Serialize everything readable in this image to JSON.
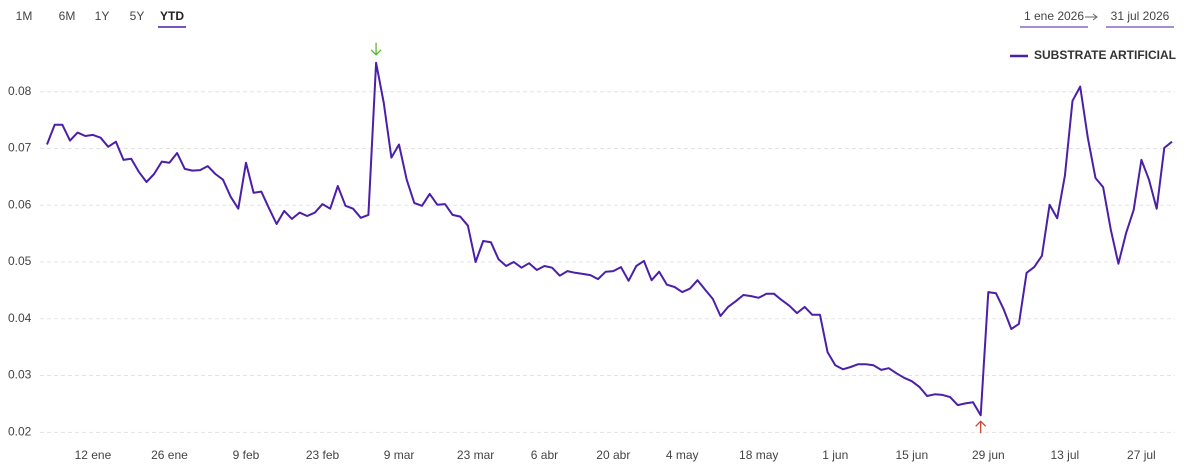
{
  "chart_data": {
    "type": "line",
    "range_buttons": [
      "1M",
      "6M",
      "1Y",
      "5Y",
      "YTD"
    ],
    "selected_range": "YTD",
    "date_from": "1 ene 2026",
    "date_to": "31 jul 2026",
    "legend": "top-right",
    "grid": true,
    "categories": [
      null,
      null,
      null,
      null,
      null,
      null,
      "12 ene",
      null,
      null,
      null,
      null,
      null,
      null,
      null,
      null,
      null,
      "26 ene",
      null,
      null,
      null,
      null,
      null,
      null,
      null,
      null,
      null,
      "9 feb",
      null,
      null,
      null,
      null,
      null,
      null,
      null,
      null,
      null,
      "23 feb",
      null,
      null,
      null,
      null,
      null,
      null,
      null,
      null,
      null,
      "9 mar",
      null,
      null,
      null,
      null,
      null,
      null,
      null,
      null,
      null,
      "23 mar",
      null,
      null,
      null,
      null,
      null,
      null,
      null,
      null,
      "6 abr",
      null,
      null,
      null,
      null,
      null,
      null,
      null,
      null,
      "20 abr",
      null,
      null,
      null,
      null,
      null,
      null,
      null,
      null,
      "4 may",
      null,
      null,
      null,
      null,
      null,
      null,
      null,
      null,
      null,
      "18 may",
      null,
      null,
      null,
      null,
      null,
      null,
      null,
      null,
      null,
      "1 jun",
      null,
      null,
      null,
      null,
      null,
      null,
      null,
      null,
      null,
      "15 jun",
      null,
      null,
      null,
      null,
      null,
      null,
      null,
      null,
      null,
      "29 jun",
      null,
      null,
      null,
      null,
      null,
      null,
      null,
      null,
      null,
      "13 jul",
      null,
      null,
      null,
      null,
      null,
      null,
      null,
      null,
      null,
      "27 jul",
      null,
      null,
      null,
      null
    ],
    "series": [
      {
        "name": "SUBSTRATE ARTIFICIAL",
        "color": "#4b1fa8",
        "values": [
          0.0707,
          0.0742,
          0.0742,
          0.0714,
          0.0728,
          0.0722,
          0.0724,
          0.0719,
          0.0703,
          0.0712,
          0.068,
          0.0682,
          0.0659,
          0.0641,
          0.0655,
          0.0677,
          0.0675,
          0.0692,
          0.0664,
          0.0661,
          0.0662,
          0.0669,
          0.0655,
          0.0645,
          0.0615,
          0.0594,
          0.0675,
          0.0622,
          0.0624,
          0.0595,
          0.0567,
          0.059,
          0.0576,
          0.0587,
          0.0581,
          0.0587,
          0.0602,
          0.0594,
          0.0634,
          0.0599,
          0.0594,
          0.0578,
          0.0583,
          0.0851,
          0.0781,
          0.0684,
          0.0707,
          0.0645,
          0.0604,
          0.0599,
          0.062,
          0.0601,
          0.0602,
          0.0583,
          0.058,
          0.0564,
          0.05,
          0.0537,
          0.0535,
          0.0505,
          0.0493,
          0.05,
          0.049,
          0.0498,
          0.0486,
          0.0493,
          0.049,
          0.0476,
          0.0484,
          0.0481,
          0.0479,
          0.0477,
          0.047,
          0.0483,
          0.0484,
          0.0491,
          0.0467,
          0.0493,
          0.0502,
          0.0468,
          0.0483,
          0.046,
          0.0456,
          0.0447,
          0.0453,
          0.0468,
          0.0451,
          0.0435,
          0.0405,
          0.0421,
          0.0431,
          0.0442,
          0.044,
          0.0437,
          0.0444,
          0.0444,
          0.0433,
          0.0423,
          0.041,
          0.0421,
          0.0407,
          0.0407,
          0.0341,
          0.0318,
          0.0311,
          0.0315,
          0.032,
          0.032,
          0.0318,
          0.031,
          0.0313,
          0.0304,
          0.0296,
          0.029,
          0.028,
          0.0264,
          0.0267,
          0.0266,
          0.0262,
          0.0248,
          0.0251,
          0.0253,
          0.023,
          0.0447,
          0.0445,
          0.0417,
          0.0382,
          0.0391,
          0.0481,
          0.0491,
          0.0511,
          0.0601,
          0.0577,
          0.0652,
          0.0784,
          0.0809,
          0.0719,
          0.0648,
          0.0632,
          0.0557,
          0.0497,
          0.0551,
          0.0592,
          0.068,
          0.0645,
          0.0594,
          0.0701,
          0.0712
        ]
      }
    ],
    "ylim": [
      0.019,
      0.087
    ],
    "yticks": [
      0.02,
      0.03,
      0.04,
      0.05,
      0.06,
      0.07,
      0.08
    ]
  }
}
